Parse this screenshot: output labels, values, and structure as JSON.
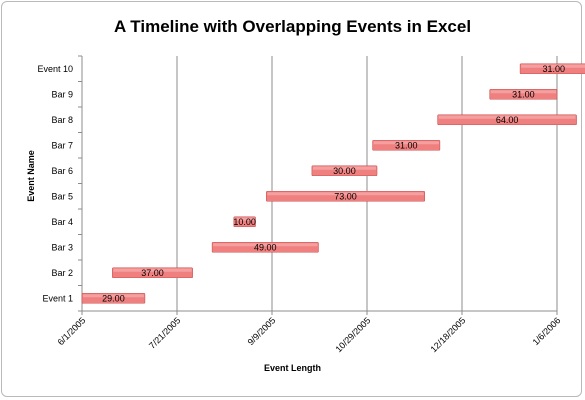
{
  "chart_data": {
    "type": "bar",
    "orientation": "horizontal",
    "title": "A Timeline with Overlapping Events in Excel",
    "xlabel": "Event Length",
    "ylabel": "Event Name",
    "x_axis_type": "date",
    "xlim": [
      "2005-06-01",
      "2006-01-06"
    ],
    "x_ticks": [
      "6/1/2005",
      "7/21/2005",
      "9/9/2005",
      "10/29/2005",
      "12/18/2005",
      "1/6/2006"
    ],
    "grid": true,
    "legend": "none",
    "bar_color": "#f08080",
    "bar_edge_color": "#c85050",
    "categories": [
      "Event 1",
      "Bar 2",
      "Bar 3",
      "Bar 4",
      "Bar 5",
      "Bar 6",
      "Bar 7",
      "Bar 8",
      "Bar 9",
      "Event 10"
    ],
    "start_dates": [
      "2005-06-01",
      "2005-06-15",
      "2005-07-31",
      "2005-08-10",
      "2005-08-25",
      "2005-09-15",
      "2005-10-13",
      "2005-11-12",
      "2005-12-06",
      "2005-12-20"
    ],
    "values": [
      29,
      37,
      49,
      10,
      73,
      30,
      31,
      64,
      31,
      31
    ],
    "data_labels": [
      "29.00",
      "37.00",
      "49.00",
      "10.00",
      "73.00",
      "30.00",
      "31.00",
      "64.00",
      "31.00",
      "31.00"
    ]
  }
}
